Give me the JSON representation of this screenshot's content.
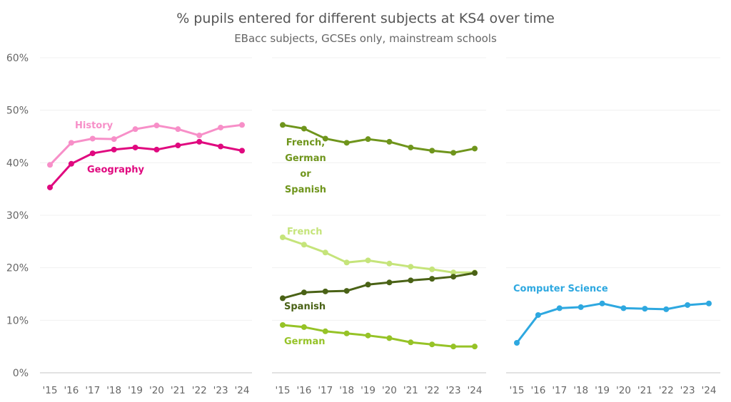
{
  "chart_data": {
    "type": "line",
    "title": "% pupils entered for different subjects at KS4 over time",
    "subtitle": "EBacc subjects, GCSEs only, mainstream schools",
    "xlabel": "",
    "ylabel": "",
    "ylim": [
      0,
      60
    ],
    "yticks": [
      0,
      10,
      20,
      30,
      40,
      50,
      60
    ],
    "ytick_labels": [
      "0%",
      "10%",
      "20%",
      "30%",
      "40%",
      "50%",
      "60%"
    ],
    "grid": true,
    "x": [
      "'15",
      "'16",
      "'17",
      "'18",
      "'19",
      "'20",
      "'21",
      "'22",
      "'23",
      "'24"
    ],
    "panels": [
      {
        "name": "humanities",
        "series": [
          {
            "name": "History",
            "label": [
              "History"
            ],
            "color": "#f78fc8",
            "values": [
              39.6,
              43.8,
              44.6,
              44.5,
              46.4,
              47.1,
              46.4,
              45.2,
              46.7,
              47.2
            ]
          },
          {
            "name": "Geography",
            "label": [
              "Geography"
            ],
            "color": "#e0097f",
            "values": [
              35.3,
              39.8,
              41.8,
              42.5,
              42.9,
              42.5,
              43.3,
              44.0,
              43.1,
              42.3
            ]
          }
        ]
      },
      {
        "name": "languages",
        "series": [
          {
            "name": "French, German or Spanish",
            "label": [
              "French,",
              "German",
              "or",
              "Spanish"
            ],
            "color": "#6f951c",
            "values": [
              47.2,
              46.5,
              44.6,
              43.8,
              44.5,
              44.0,
              42.9,
              42.3,
              41.9,
              42.7
            ]
          },
          {
            "name": "French",
            "label": [
              "French"
            ],
            "color": "#c5e47a",
            "values": [
              25.8,
              24.4,
              22.9,
              21.0,
              21.4,
              20.8,
              20.2,
              19.7,
              19.1,
              19.1
            ]
          },
          {
            "name": "Spanish",
            "label": [
              "Spanish"
            ],
            "color": "#4a6216",
            "values": [
              14.2,
              15.3,
              15.5,
              15.6,
              16.8,
              17.2,
              17.6,
              17.9,
              18.3,
              19.0
            ]
          },
          {
            "name": "German",
            "label": [
              "German"
            ],
            "color": "#96c327",
            "values": [
              9.1,
              8.7,
              7.9,
              7.5,
              7.1,
              6.6,
              5.8,
              5.4,
              5.0,
              5.0
            ]
          }
        ]
      },
      {
        "name": "computing",
        "series": [
          {
            "name": "Computer Science",
            "label": [
              "Computer Science"
            ],
            "color": "#2ea8e0",
            "values": [
              5.7,
              11.0,
              12.3,
              12.5,
              13.2,
              12.3,
              12.2,
              12.1,
              12.9,
              13.2
            ]
          }
        ]
      }
    ]
  }
}
